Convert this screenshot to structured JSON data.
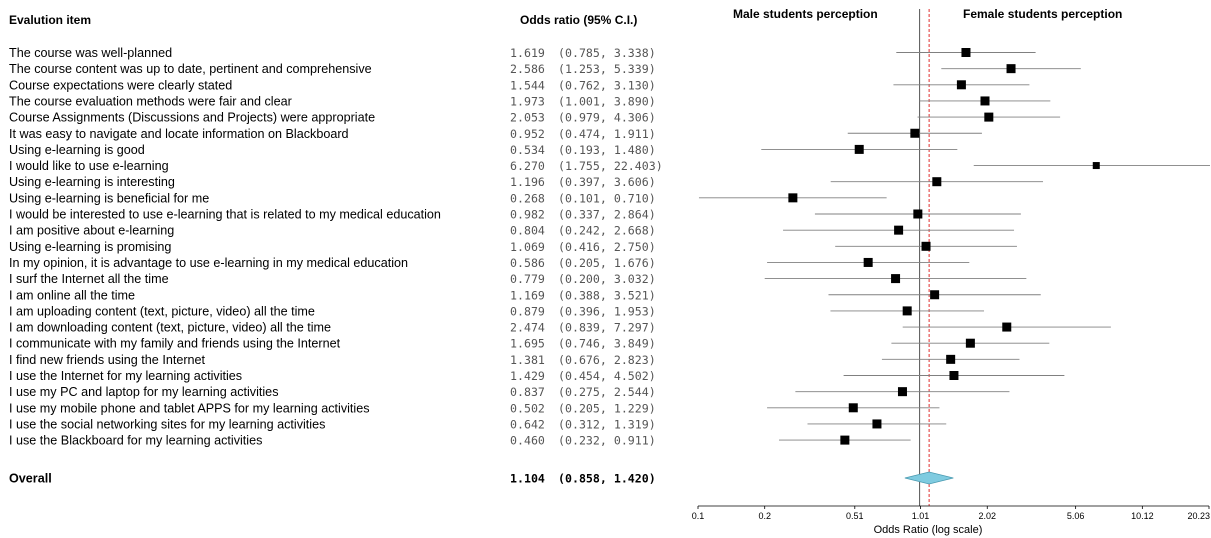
{
  "headers": {
    "item": "Evalution item",
    "or": "Odds ratio (95% C.I.)",
    "male": "Male students perception",
    "female": "Female students perception"
  },
  "chart_data": {
    "type": "forest",
    "x_scale": "log",
    "xlabel": "Odds Ratio (log scale)",
    "xticks": [
      0.1,
      0.2,
      0.51,
      1.01,
      2.02,
      5.06,
      10.12,
      20.23
    ],
    "xtick_labels": [
      "0.1",
      "0.2",
      "0.51",
      "1.01",
      "2.02",
      "5.06",
      "10.12",
      "20.23"
    ],
    "xlim": [
      0.1,
      20.23
    ],
    "reference_line": 1,
    "overall_line": 1.104,
    "rows": [
      {
        "label": "The course was well-planned",
        "or": 1.619,
        "lo": 0.785,
        "hi": 3.338,
        "or_text": "1.619",
        "ci_text": "(0.785,  3.338)"
      },
      {
        "label": "The course content was up to date, pertinent and comprehensive",
        "or": 2.586,
        "lo": 1.253,
        "hi": 5.339,
        "or_text": "2.586",
        "ci_text": "(1.253,  5.339)"
      },
      {
        "label": "Course expectations were clearly stated",
        "or": 1.544,
        "lo": 0.762,
        "hi": 3.13,
        "or_text": "1.544",
        "ci_text": "(0.762,  3.130)"
      },
      {
        "label": "The course evaluation methods were fair and clear",
        "or": 1.973,
        "lo": 1.001,
        "hi": 3.89,
        "or_text": "1.973",
        "ci_text": "(1.001,  3.890)"
      },
      {
        "label": "Course Assignments (Discussions and Projects) were appropriate",
        "or": 2.053,
        "lo": 0.979,
        "hi": 4.306,
        "or_text": "2.053",
        "ci_text": "(0.979,  4.306)"
      },
      {
        "label": "It was easy to navigate and locate information on Blackboard",
        "or": 0.952,
        "lo": 0.474,
        "hi": 1.911,
        "or_text": "0.952",
        "ci_text": "(0.474,  1.911)"
      },
      {
        "label": "Using e-learning is good",
        "or": 0.534,
        "lo": 0.193,
        "hi": 1.48,
        "or_text": "0.534",
        "ci_text": "(0.193,  1.480)"
      },
      {
        "label": "I would like to use e-learning",
        "or": 6.27,
        "lo": 1.755,
        "hi": 22.403,
        "or_text": "6.270",
        "ci_text": "(1.755, 22.403)"
      },
      {
        "label": "Using e-learning is interesting",
        "or": 1.196,
        "lo": 0.397,
        "hi": 3.606,
        "or_text": "1.196",
        "ci_text": "(0.397,  3.606)"
      },
      {
        "label": "Using e-learning is beneficial for me",
        "or": 0.268,
        "lo": 0.101,
        "hi": 0.71,
        "or_text": "0.268",
        "ci_text": "(0.101,  0.710)"
      },
      {
        "label": "I would be interested to use e-learning that is related to my medical education",
        "or": 0.982,
        "lo": 0.337,
        "hi": 2.864,
        "or_text": "0.982",
        "ci_text": "(0.337,  2.864)"
      },
      {
        "label": "I am positive about e-learning",
        "or": 0.804,
        "lo": 0.242,
        "hi": 2.668,
        "or_text": "0.804",
        "ci_text": "(0.242,  2.668)"
      },
      {
        "label": "Using e-learning is promising",
        "or": 1.069,
        "lo": 0.416,
        "hi": 2.75,
        "or_text": "1.069",
        "ci_text": "(0.416,  2.750)"
      },
      {
        "label": "In my opinion, it is advantage to use e-learning in my medical education",
        "or": 0.586,
        "lo": 0.205,
        "hi": 1.676,
        "or_text": "0.586",
        "ci_text": "(0.205,  1.676)"
      },
      {
        "label": "I surf the Internet all the time",
        "or": 0.779,
        "lo": 0.2,
        "hi": 3.032,
        "or_text": "0.779",
        "ci_text": "(0.200,  3.032)"
      },
      {
        "label": "I am online all the time",
        "or": 1.169,
        "lo": 0.388,
        "hi": 3.521,
        "or_text": "1.169",
        "ci_text": "(0.388,  3.521)"
      },
      {
        "label": "I am uploading content (text, picture, video) all the time",
        "or": 0.879,
        "lo": 0.396,
        "hi": 1.953,
        "or_text": "0.879",
        "ci_text": "(0.396,  1.953)"
      },
      {
        "label": "I am downloading content (text, picture, video) all the time",
        "or": 2.474,
        "lo": 0.839,
        "hi": 7.297,
        "or_text": "2.474",
        "ci_text": "(0.839,  7.297)"
      },
      {
        "label": "I communicate with my family and friends using the Internet",
        "or": 1.695,
        "lo": 0.746,
        "hi": 3.849,
        "or_text": "1.695",
        "ci_text": "(0.746,  3.849)"
      },
      {
        "label": "I find new friends using the Internet",
        "or": 1.381,
        "lo": 0.676,
        "hi": 2.823,
        "or_text": "1.381",
        "ci_text": "(0.676,  2.823)"
      },
      {
        "label": "I use the Internet for my learning activities",
        "or": 1.429,
        "lo": 0.454,
        "hi": 4.502,
        "or_text": "1.429",
        "ci_text": "(0.454,  4.502)"
      },
      {
        "label": "I use my PC and laptop for my learning activities",
        "or": 0.837,
        "lo": 0.275,
        "hi": 2.544,
        "or_text": "0.837",
        "ci_text": "(0.275,  2.544)"
      },
      {
        "label": "I use my mobile phone and tablet APPS for my learning activities",
        "or": 0.502,
        "lo": 0.205,
        "hi": 1.229,
        "or_text": "0.502",
        "ci_text": "(0.205,  1.229)"
      },
      {
        "label": "I use the social networking sites for my learning activities",
        "or": 0.642,
        "lo": 0.312,
        "hi": 1.319,
        "or_text": "0.642",
        "ci_text": "(0.312,  1.319)"
      },
      {
        "label": "I use the Blackboard for my learning activities",
        "or": 0.46,
        "lo": 0.232,
        "hi": 0.911,
        "or_text": "0.460",
        "ci_text": "(0.232,  0.911)"
      }
    ],
    "overall": {
      "label": "Overall",
      "or": 1.104,
      "lo": 0.858,
      "hi": 1.42,
      "or_text": "1.104",
      "ci_text": "(0.858,  1.420)"
    }
  },
  "colors": {
    "marker": "#000000",
    "ci_line": "#808080",
    "reference_line": "#555555",
    "overall_line": "#e03030",
    "diamond_fill": "#7fcbe0",
    "diamond_stroke": "#4a9ab0"
  }
}
